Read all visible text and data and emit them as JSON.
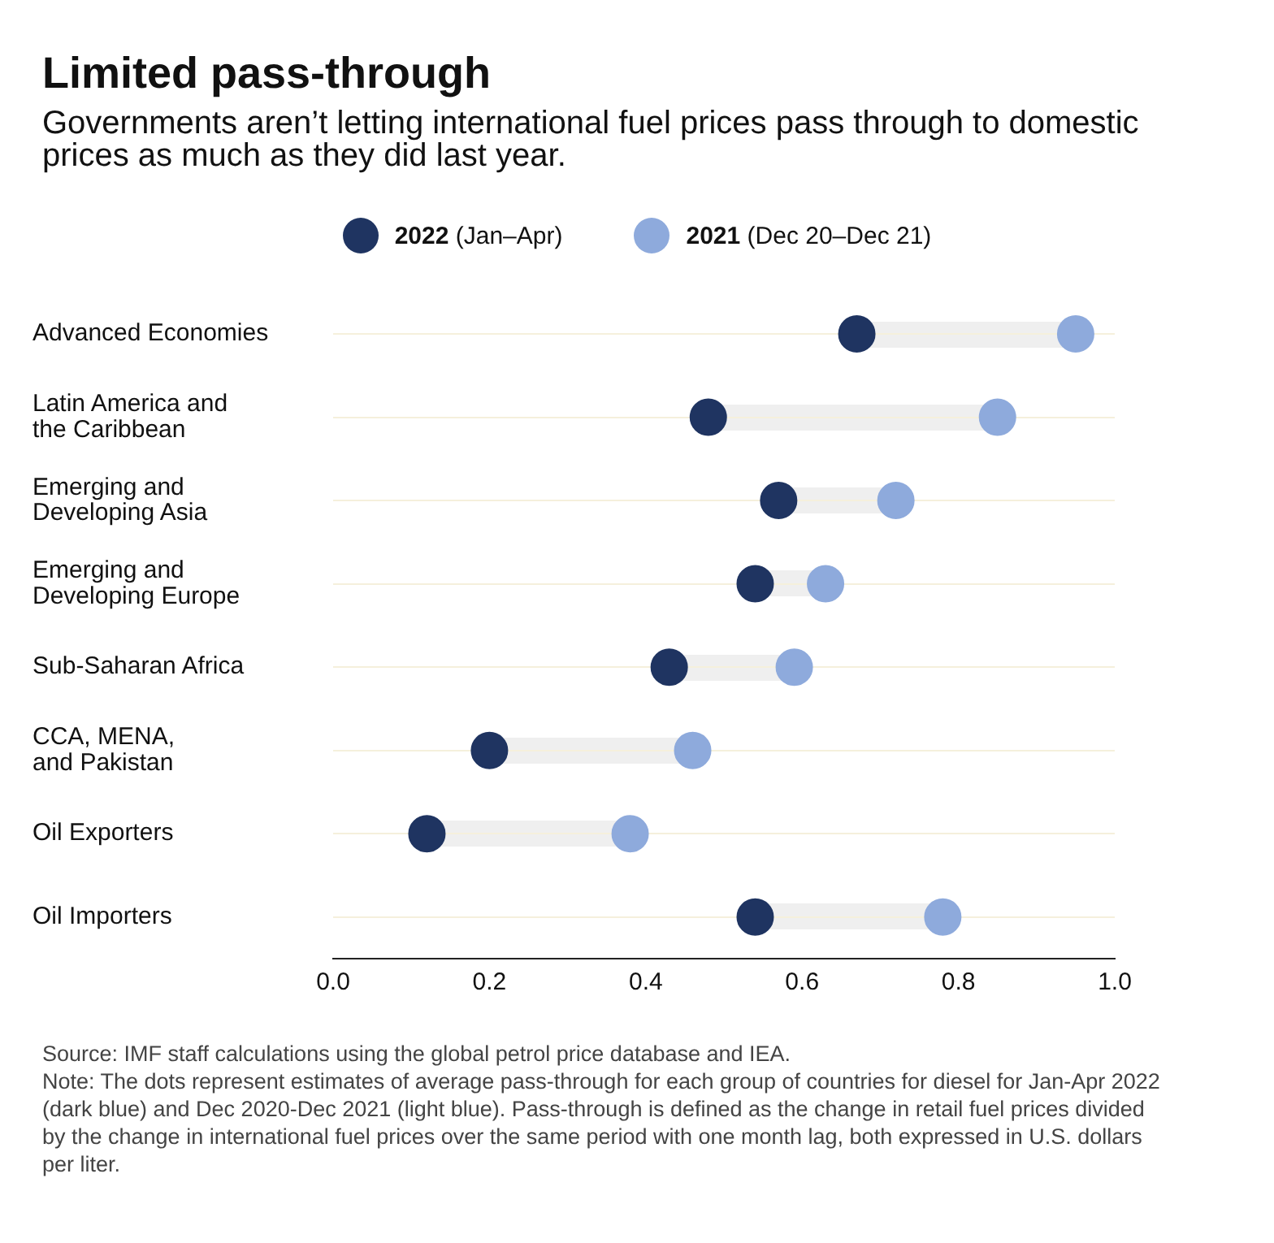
{
  "chart_data": {
    "type": "scatter",
    "orientation": "horizontal",
    "title": "Limited pass-through",
    "subtitle": "Governments aren’t letting international fuel prices pass through to domestic prices as much as they did last year.",
    "categories": [
      "Advanced Economies",
      "Latin America and\nthe Caribbean",
      "Emerging and\nDeveloping Asia",
      "Emerging and\nDeveloping Europe",
      "Sub-Saharan Africa",
      "CCA, MENA,\nand Pakistan",
      "Oil Exporters",
      "Oil Importers"
    ],
    "series": [
      {
        "name": "2022 (Jan–Apr)",
        "color": "#1f3461",
        "values": [
          0.67,
          0.48,
          0.57,
          0.54,
          0.43,
          0.2,
          0.12,
          0.54
        ]
      },
      {
        "name": "2021 (Dec 20–Dec 21)",
        "color": "#8eaadc",
        "values": [
          0.95,
          0.85,
          0.72,
          0.63,
          0.59,
          0.46,
          0.38,
          0.78
        ]
      }
    ],
    "xlim": [
      0,
      1
    ],
    "xticks": [
      {
        "value": 0,
        "label": "0.0"
      },
      {
        "value": 0.2,
        "label": "0.2"
      },
      {
        "value": 0.4,
        "label": "0.4"
      },
      {
        "value": 0.6,
        "label": "0.6"
      },
      {
        "value": 0.8,
        "label": "0.8"
      },
      {
        "value": 1,
        "label": "1.0"
      }
    ],
    "grid": "y",
    "legend": "top",
    "marker": "circle",
    "annotations": [
      "Source: IMF staff calculations using the global petrol price database and IEA.",
      "Note: The dots  represent estimates of average pass-through for each group of countries for diesel for Jan-Apr 2022 (dark blue) and Dec 2020-Dec 2021 (light blue). Pass-through is defined as the change in retail fuel prices divided by the change in international fuel prices over the same period with one month lag, both expressed in U.S. dollars per liter."
    ]
  }
}
